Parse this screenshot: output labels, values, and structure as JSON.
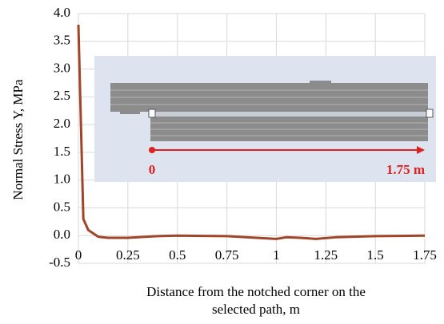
{
  "chart_data": {
    "type": "line",
    "ylabel": "Normal Stress Y, MPa",
    "xlabel": [
      "Distance from the notched corner on the",
      "selected path, m"
    ],
    "annotations": [
      "0",
      "1.75 m"
    ],
    "x": [
      0,
      0.025,
      0.05,
      0.1,
      0.15,
      0.25,
      0.4,
      0.5,
      0.75,
      0.9,
      1.0,
      1.05,
      1.12,
      1.2,
      1.3,
      1.5,
      1.75
    ],
    "values": [
      3.8,
      0.3,
      0.1,
      -0.02,
      -0.04,
      -0.04,
      -0.01,
      0,
      -0.01,
      -0.04,
      -0.06,
      -0.03,
      -0.04,
      -0.06,
      -0.03,
      -0.01,
      0
    ],
    "color": "#a0442a",
    "xlim": [
      0,
      1.75
    ],
    "xticks": [
      0,
      0.25,
      0.5,
      0.75,
      1,
      1.25,
      1.5,
      1.75
    ],
    "ylim": [
      -0.5,
      4
    ],
    "yticks": [
      {
        "value": -0.5,
        "label": "-0.5"
      },
      {
        "value": 0,
        "label": "0.0"
      },
      0.5,
      {
        "value": 1,
        "label": "1.0"
      },
      1.5,
      {
        "value": 2,
        "label": "2.0"
      },
      2.5,
      {
        "value": 3,
        "label": "3.0"
      },
      3.5,
      {
        "value": 4,
        "label": "4.0"
      }
    ],
    "grid": true
  }
}
